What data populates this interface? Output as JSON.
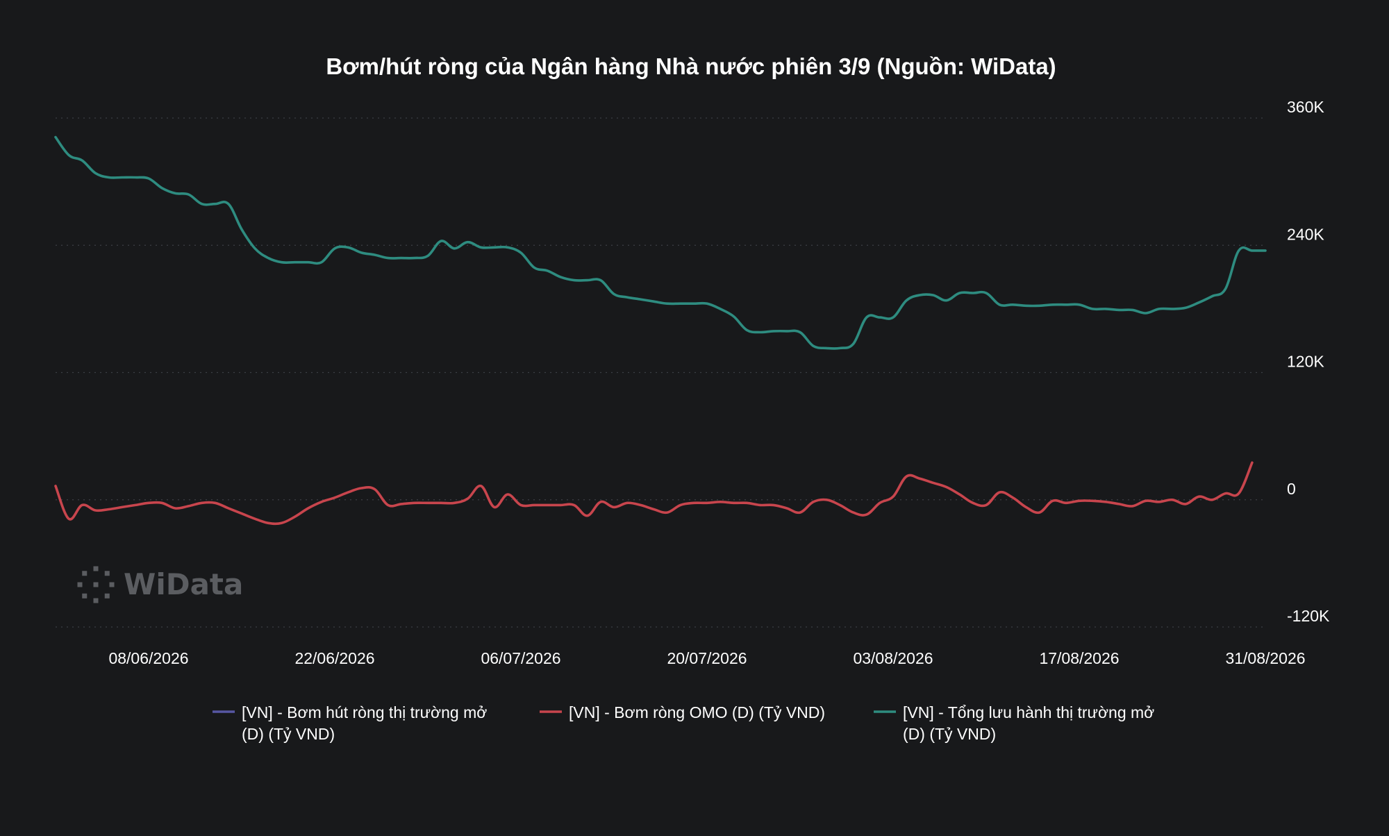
{
  "chart_data": {
    "type": "line",
    "title": "Bơm/hút ròng của Ngân hàng Nhà nước phiên 3/9 (Nguồn: WiData)",
    "xlabel": "",
    "ylabel": "",
    "x_start": "2026-06-01",
    "x_end": "2026-08-31",
    "x_ticks": [
      "08/06/2026",
      "22/06/2026",
      "06/07/2026",
      "20/07/2026",
      "03/08/2026",
      "17/08/2026",
      "31/08/2026"
    ],
    "y_ticks": [
      "360K",
      "240K",
      "120K",
      "0",
      "-120K"
    ],
    "y_tick_values": [
      360000,
      240000,
      120000,
      0,
      -120000
    ],
    "ylim": [
      -120000,
      360000
    ],
    "y_axis_side": "right",
    "grid": true,
    "legend_position": "bottom",
    "watermark": "WiData",
    "series": [
      {
        "name": "[VN] - Bơm hút ròng thị trường mở (D) (Tỷ VND)",
        "legend_lines": [
          "[VN] - Bơm hút ròng thị trường mở",
          "(D) (Tỷ VND)"
        ],
        "color": "#5757a3",
        "points": []
      },
      {
        "name": "[VN] - Bơm ròng OMO (D) (Tỷ VND)",
        "legend_lines": [
          "[VN] - Bơm ròng OMO (D) (Tỷ VND)"
        ],
        "color": "#c8454d",
        "points": [
          [
            "2026-06-01",
            13000
          ],
          [
            "2026-06-02",
            -18000
          ],
          [
            "2026-06-03",
            -5000
          ],
          [
            "2026-06-04",
            -10000
          ],
          [
            "2026-06-05",
            -9000
          ],
          [
            "2026-06-06",
            -7000
          ],
          [
            "2026-06-07",
            -5000
          ],
          [
            "2026-06-08",
            -3000
          ],
          [
            "2026-06-09",
            -3000
          ],
          [
            "2026-06-10",
            -8000
          ],
          [
            "2026-06-11",
            -6000
          ],
          [
            "2026-06-12",
            -3000
          ],
          [
            "2026-06-13",
            -3000
          ],
          [
            "2026-06-14",
            -8000
          ],
          [
            "2026-06-15",
            -13000
          ],
          [
            "2026-06-16",
            -18000
          ],
          [
            "2026-06-17",
            -22000
          ],
          [
            "2026-06-18",
            -22000
          ],
          [
            "2026-06-19",
            -16000
          ],
          [
            "2026-06-20",
            -8000
          ],
          [
            "2026-06-21",
            -2000
          ],
          [
            "2026-06-22",
            2000
          ],
          [
            "2026-06-23",
            7000
          ],
          [
            "2026-06-24",
            11000
          ],
          [
            "2026-06-25",
            10000
          ],
          [
            "2026-06-26",
            -5000
          ],
          [
            "2026-06-27",
            -4000
          ],
          [
            "2026-06-28",
            -3000
          ],
          [
            "2026-06-29",
            -3000
          ],
          [
            "2026-06-30",
            -3000
          ],
          [
            "2026-07-01",
            -3000
          ],
          [
            "2026-07-02",
            1000
          ],
          [
            "2026-07-03",
            13000
          ],
          [
            "2026-07-04",
            -7000
          ],
          [
            "2026-07-05",
            5000
          ],
          [
            "2026-07-06",
            -5000
          ],
          [
            "2026-07-07",
            -5000
          ],
          [
            "2026-07-08",
            -5000
          ],
          [
            "2026-07-09",
            -5000
          ],
          [
            "2026-07-10",
            -5000
          ],
          [
            "2026-07-11",
            -15000
          ],
          [
            "2026-07-12",
            -2000
          ],
          [
            "2026-07-13",
            -7000
          ],
          [
            "2026-07-14",
            -3000
          ],
          [
            "2026-07-15",
            -5000
          ],
          [
            "2026-07-16",
            -9000
          ],
          [
            "2026-07-17",
            -12000
          ],
          [
            "2026-07-18",
            -5000
          ],
          [
            "2026-07-19",
            -3000
          ],
          [
            "2026-07-20",
            -3000
          ],
          [
            "2026-07-21",
            -2000
          ],
          [
            "2026-07-22",
            -3000
          ],
          [
            "2026-07-23",
            -3000
          ],
          [
            "2026-07-24",
            -5000
          ],
          [
            "2026-07-25",
            -5000
          ],
          [
            "2026-07-26",
            -8000
          ],
          [
            "2026-07-27",
            -12000
          ],
          [
            "2026-07-28",
            -2000
          ],
          [
            "2026-07-29",
            0
          ],
          [
            "2026-07-30",
            -5000
          ],
          [
            "2026-07-31",
            -12000
          ],
          [
            "2026-08-01",
            -14000
          ],
          [
            "2026-08-02",
            -3000
          ],
          [
            "2026-08-03",
            3000
          ],
          [
            "2026-08-04",
            22000
          ],
          [
            "2026-08-05",
            20000
          ],
          [
            "2026-08-06",
            16000
          ],
          [
            "2026-08-07",
            12000
          ],
          [
            "2026-08-08",
            5000
          ],
          [
            "2026-08-09",
            -3000
          ],
          [
            "2026-08-10",
            -5000
          ],
          [
            "2026-08-11",
            7000
          ],
          [
            "2026-08-12",
            2000
          ],
          [
            "2026-08-13",
            -7000
          ],
          [
            "2026-08-14",
            -12000
          ],
          [
            "2026-08-15",
            -1000
          ],
          [
            "2026-08-16",
            -3000
          ],
          [
            "2026-08-17",
            -1000
          ],
          [
            "2026-08-18",
            -1000
          ],
          [
            "2026-08-19",
            -2000
          ],
          [
            "2026-08-20",
            -4000
          ],
          [
            "2026-08-21",
            -6000
          ],
          [
            "2026-08-22",
            -1000
          ],
          [
            "2026-08-23",
            -2000
          ],
          [
            "2026-08-24",
            0
          ],
          [
            "2026-08-25",
            -4000
          ],
          [
            "2026-08-26",
            3000
          ],
          [
            "2026-08-27",
            0
          ],
          [
            "2026-08-28",
            6000
          ],
          [
            "2026-08-29",
            6000
          ],
          [
            "2026-08-30",
            35000
          ]
        ]
      },
      {
        "name": "[VN] - Tổng lưu hành thị trường mở (D) (Tỷ VND)",
        "legend_lines": [
          "[VN] - Tổng lưu hành thị trường mở",
          " (D) (Tỷ VND)"
        ],
        "color": "#2e8c80",
        "points": [
          [
            "2026-06-01",
            342000
          ],
          [
            "2026-06-02",
            325000
          ],
          [
            "2026-06-03",
            320000
          ],
          [
            "2026-06-04",
            308000
          ],
          [
            "2026-06-05",
            304000
          ],
          [
            "2026-06-06",
            304000
          ],
          [
            "2026-06-07",
            304000
          ],
          [
            "2026-06-08",
            303000
          ],
          [
            "2026-06-09",
            294000
          ],
          [
            "2026-06-10",
            289000
          ],
          [
            "2026-06-11",
            288000
          ],
          [
            "2026-06-12",
            279000
          ],
          [
            "2026-06-13",
            279000
          ],
          [
            "2026-06-14",
            279000
          ],
          [
            "2026-06-15",
            255000
          ],
          [
            "2026-06-16",
            237000
          ],
          [
            "2026-06-17",
            228000
          ],
          [
            "2026-06-18",
            224000
          ],
          [
            "2026-06-19",
            224000
          ],
          [
            "2026-06-20",
            224000
          ],
          [
            "2026-06-21",
            224000
          ],
          [
            "2026-06-22",
            237000
          ],
          [
            "2026-06-23",
            238000
          ],
          [
            "2026-06-24",
            233000
          ],
          [
            "2026-06-25",
            231000
          ],
          [
            "2026-06-26",
            228000
          ],
          [
            "2026-06-27",
            228000
          ],
          [
            "2026-06-28",
            228000
          ],
          [
            "2026-06-29",
            230000
          ],
          [
            "2026-06-30",
            244000
          ],
          [
            "2026-07-01",
            237000
          ],
          [
            "2026-07-02",
            243000
          ],
          [
            "2026-07-03",
            238000
          ],
          [
            "2026-07-04",
            238000
          ],
          [
            "2026-07-05",
            238000
          ],
          [
            "2026-07-06",
            233000
          ],
          [
            "2026-07-07",
            219000
          ],
          [
            "2026-07-08",
            216000
          ],
          [
            "2026-07-09",
            210000
          ],
          [
            "2026-07-10",
            207000
          ],
          [
            "2026-07-11",
            207000
          ],
          [
            "2026-07-12",
            207000
          ],
          [
            "2026-07-13",
            194000
          ],
          [
            "2026-07-14",
            191000
          ],
          [
            "2026-07-15",
            189000
          ],
          [
            "2026-07-16",
            187000
          ],
          [
            "2026-07-17",
            185000
          ],
          [
            "2026-07-18",
            185000
          ],
          [
            "2026-07-19",
            185000
          ],
          [
            "2026-07-20",
            185000
          ],
          [
            "2026-07-21",
            180000
          ],
          [
            "2026-07-22",
            173000
          ],
          [
            "2026-07-23",
            160000
          ],
          [
            "2026-07-24",
            158000
          ],
          [
            "2026-07-25",
            159000
          ],
          [
            "2026-07-26",
            159000
          ],
          [
            "2026-07-27",
            158000
          ],
          [
            "2026-07-28",
            145000
          ],
          [
            "2026-07-29",
            143000
          ],
          [
            "2026-07-30",
            143000
          ],
          [
            "2026-07-31",
            147000
          ],
          [
            "2026-08-01",
            172000
          ],
          [
            "2026-08-02",
            172000
          ],
          [
            "2026-08-03",
            172000
          ],
          [
            "2026-08-04",
            188000
          ],
          [
            "2026-08-05",
            193000
          ],
          [
            "2026-08-06",
            193000
          ],
          [
            "2026-08-07",
            188000
          ],
          [
            "2026-08-08",
            195000
          ],
          [
            "2026-08-09",
            195000
          ],
          [
            "2026-08-10",
            195000
          ],
          [
            "2026-08-11",
            184000
          ],
          [
            "2026-08-12",
            184000
          ],
          [
            "2026-08-13",
            183000
          ],
          [
            "2026-08-14",
            183000
          ],
          [
            "2026-08-15",
            184000
          ],
          [
            "2026-08-16",
            184000
          ],
          [
            "2026-08-17",
            184000
          ],
          [
            "2026-08-18",
            180000
          ],
          [
            "2026-08-19",
            180000
          ],
          [
            "2026-08-20",
            179000
          ],
          [
            "2026-08-21",
            179000
          ],
          [
            "2026-08-22",
            176000
          ],
          [
            "2026-08-23",
            180000
          ],
          [
            "2026-08-24",
            180000
          ],
          [
            "2026-08-25",
            181000
          ],
          [
            "2026-08-26",
            186000
          ],
          [
            "2026-08-27",
            192000
          ],
          [
            "2026-08-28",
            199000
          ],
          [
            "2026-08-29",
            235000
          ],
          [
            "2026-08-30",
            235000
          ],
          [
            "2026-08-31",
            235000
          ]
        ]
      }
    ]
  }
}
